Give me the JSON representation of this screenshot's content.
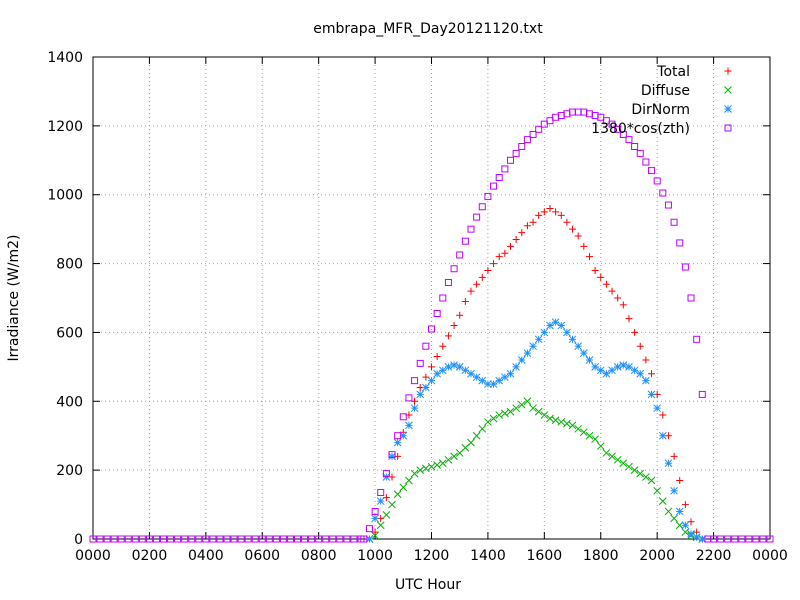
{
  "chart_data": {
    "type": "scatter",
    "title": "embrapa_MFR_Day20121120.txt",
    "xlabel": "UTC Hour",
    "ylabel": "Irradiance (W/m2)",
    "xlim": [
      0,
      24
    ],
    "ylim": [
      0,
      1400
    ],
    "grid": true,
    "legend_position": "top-right",
    "x_tick_labels": [
      "0000",
      "0200",
      "0400",
      "0600",
      "0800",
      "1000",
      "1200",
      "1400",
      "1600",
      "1800",
      "2000",
      "2200",
      "0000"
    ],
    "y_tick_labels": [
      "0",
      "200",
      "400",
      "600",
      "800",
      "1000",
      "1200",
      "1400"
    ],
    "y_tick_values": [
      0,
      200,
      400,
      600,
      800,
      1000,
      1200,
      1400
    ],
    "series": [
      {
        "name": "Total",
        "marker": "plus",
        "color": "#ff0000",
        "x": [
          9.8,
          10.0,
          10.2,
          10.4,
          10.6,
          10.8,
          11.0,
          11.2,
          11.4,
          11.6,
          11.8,
          12.0,
          12.2,
          12.4,
          12.6,
          12.8,
          13.0,
          13.2,
          13.4,
          13.6,
          13.8,
          14.0,
          14.2,
          14.4,
          14.6,
          14.8,
          15.0,
          15.2,
          15.4,
          15.6,
          15.8,
          16.0,
          16.2,
          16.4,
          16.6,
          16.8,
          17.0,
          17.2,
          17.4,
          17.6,
          17.8,
          18.0,
          18.2,
          18.4,
          18.6,
          18.8,
          19.0,
          19.2,
          19.4,
          19.6,
          19.8,
          20.0,
          20.2,
          20.4,
          20.6,
          20.8,
          21.0,
          21.2,
          21.4,
          21.6
        ],
        "y": [
          0,
          20,
          60,
          120,
          180,
          240,
          310,
          360,
          400,
          440,
          470,
          500,
          530,
          560,
          590,
          620,
          650,
          690,
          720,
          740,
          760,
          780,
          800,
          820,
          830,
          850,
          870,
          890,
          910,
          920,
          940,
          950,
          960,
          950,
          940,
          920,
          900,
          880,
          850,
          820,
          780,
          760,
          740,
          720,
          700,
          680,
          640,
          600,
          560,
          520,
          480,
          420,
          360,
          300,
          240,
          170,
          100,
          50,
          20,
          0
        ]
      },
      {
        "name": "Diffuse",
        "marker": "cross",
        "color": "#00b000",
        "x": [
          9.8,
          10.0,
          10.2,
          10.4,
          10.6,
          10.8,
          11.0,
          11.2,
          11.4,
          11.6,
          11.8,
          12.0,
          12.2,
          12.4,
          12.6,
          12.8,
          13.0,
          13.2,
          13.4,
          13.6,
          13.8,
          14.0,
          14.2,
          14.4,
          14.6,
          14.8,
          15.0,
          15.2,
          15.4,
          15.6,
          15.8,
          16.0,
          16.2,
          16.4,
          16.6,
          16.8,
          17.0,
          17.2,
          17.4,
          17.6,
          17.8,
          18.0,
          18.2,
          18.4,
          18.6,
          18.8,
          19.0,
          19.2,
          19.4,
          19.6,
          19.8,
          20.0,
          20.2,
          20.4,
          20.6,
          20.8,
          21.0,
          21.2,
          21.4,
          21.6
        ],
        "y": [
          0,
          10,
          40,
          70,
          100,
          130,
          150,
          170,
          190,
          200,
          205,
          210,
          215,
          220,
          230,
          240,
          250,
          265,
          280,
          300,
          320,
          340,
          350,
          360,
          365,
          370,
          380,
          390,
          400,
          380,
          370,
          360,
          350,
          345,
          340,
          335,
          330,
          320,
          310,
          300,
          290,
          270,
          250,
          240,
          230,
          220,
          210,
          200,
          190,
          180,
          170,
          140,
          110,
          80,
          60,
          40,
          20,
          10,
          5,
          0
        ]
      },
      {
        "name": "DirNorm",
        "marker": "star",
        "color": "#1e90ff",
        "x": [
          9.8,
          10.0,
          10.2,
          10.4,
          10.6,
          10.8,
          11.0,
          11.2,
          11.4,
          11.6,
          11.8,
          12.0,
          12.2,
          12.4,
          12.6,
          12.8,
          13.0,
          13.2,
          13.4,
          13.6,
          13.8,
          14.0,
          14.2,
          14.4,
          14.6,
          14.8,
          15.0,
          15.2,
          15.4,
          15.6,
          15.8,
          16.0,
          16.2,
          16.4,
          16.6,
          16.8,
          17.0,
          17.2,
          17.4,
          17.6,
          17.8,
          18.0,
          18.2,
          18.4,
          18.6,
          18.8,
          19.0,
          19.2,
          19.4,
          19.6,
          19.8,
          20.0,
          20.2,
          20.4,
          20.6,
          20.8,
          21.0,
          21.2,
          21.4,
          21.6
        ],
        "y": [
          0,
          60,
          110,
          180,
          240,
          280,
          300,
          330,
          380,
          420,
          440,
          460,
          480,
          490,
          500,
          505,
          500,
          490,
          480,
          470,
          460,
          450,
          450,
          460,
          470,
          480,
          500,
          520,
          540,
          560,
          580,
          600,
          620,
          630,
          620,
          600,
          580,
          560,
          540,
          520,
          500,
          490,
          480,
          490,
          500,
          505,
          500,
          490,
          480,
          460,
          420,
          380,
          300,
          220,
          140,
          80,
          40,
          15,
          5,
          0
        ]
      },
      {
        "name": "1380*cos(zth)",
        "marker": "square",
        "color": "#c000ff",
        "x": [
          9.6,
          9.8,
          10.0,
          10.2,
          10.4,
          10.6,
          10.8,
          11.0,
          11.2,
          11.4,
          11.6,
          11.8,
          12.0,
          12.2,
          12.4,
          12.6,
          12.8,
          13.0,
          13.2,
          13.4,
          13.6,
          13.8,
          14.0,
          14.2,
          14.4,
          14.6,
          14.8,
          15.0,
          15.2,
          15.4,
          15.6,
          15.8,
          16.0,
          16.2,
          16.4,
          16.6,
          16.8,
          17.0,
          17.2,
          17.4,
          17.6,
          17.8,
          18.0,
          18.2,
          18.4,
          18.6,
          18.8,
          19.0,
          19.2,
          19.4,
          19.6,
          19.8,
          20.0,
          20.2,
          20.4,
          20.6,
          20.8,
          21.0,
          21.2,
          21.4,
          21.6,
          21.8
        ],
        "y": [
          0,
          30,
          80,
          135,
          190,
          245,
          300,
          355,
          410,
          460,
          510,
          560,
          610,
          655,
          700,
          745,
          785,
          825,
          865,
          900,
          935,
          965,
          995,
          1025,
          1050,
          1075,
          1100,
          1120,
          1140,
          1160,
          1175,
          1190,
          1205,
          1215,
          1225,
          1230,
          1235,
          1240,
          1240,
          1240,
          1235,
          1230,
          1225,
          1215,
          1205,
          1190,
          1175,
          1160,
          1140,
          1120,
          1095,
          1070,
          1040,
          1005,
          970,
          920,
          860,
          790,
          700,
          580,
          420,
          0
        ]
      }
    ]
  }
}
